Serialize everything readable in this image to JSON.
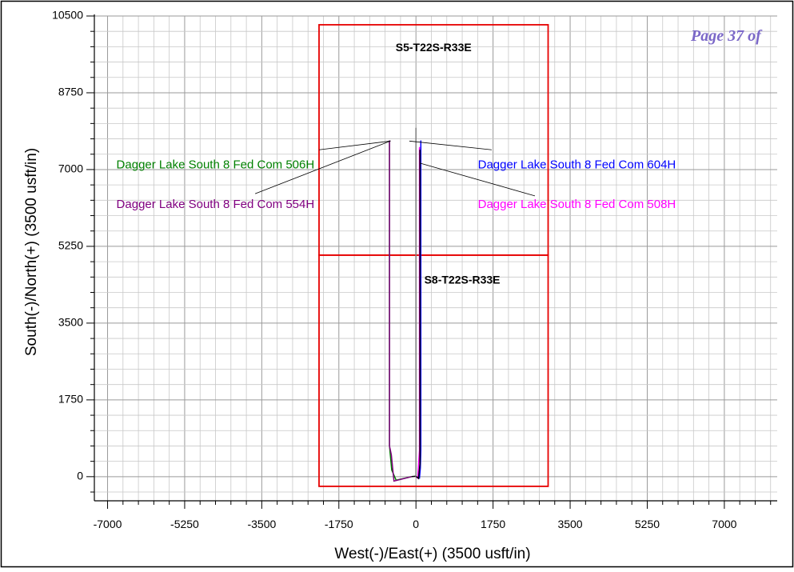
{
  "page_stamp": "Page 37 of",
  "chart_data": {
    "type": "line",
    "title": "",
    "xlabel": "West(-)/East(+) (3500 usft/in)",
    "ylabel": "South(-)/North(+) (3500 usft/in)",
    "xlim": [
      -7300,
      8200
    ],
    "ylim": [
      -550,
      10500
    ],
    "x_ticks": [
      {
        "value": -7000,
        "label": "-7000"
      },
      {
        "value": -5250,
        "label": "-5250"
      },
      {
        "value": -3500,
        "label": "-3500"
      },
      {
        "value": -1750,
        "label": "-1750"
      },
      {
        "value": 0,
        "label": "0"
      },
      {
        "value": 1750,
        "label": "1750"
      },
      {
        "value": 3500,
        "label": "3500"
      },
      {
        "value": 5250,
        "label": "5250"
      },
      {
        "value": 7000,
        "label": "7000"
      }
    ],
    "y_ticks": [
      {
        "value": 0,
        "label": "0"
      },
      {
        "value": 1750,
        "label": "1750"
      },
      {
        "value": 3500,
        "label": "3500"
      },
      {
        "value": 5250,
        "label": "5250"
      },
      {
        "value": 7000,
        "label": "7000"
      },
      {
        "value": 8750,
        "label": "8750"
      },
      {
        "value": 10500,
        "label": "10500"
      }
    ],
    "grid": true,
    "section_outline_color": "#e60000",
    "sections": [
      {
        "label": "S5-T22S-R33E",
        "x0": -2200,
        "x1": 3000,
        "y0": 5050,
        "y1": 10300,
        "label_x": 400,
        "label_y": 9700
      },
      {
        "label": "S8-T22S-R33E",
        "x0": -2200,
        "x1": 3000,
        "y0": -220,
        "y1": 5050,
        "label_x": 1050,
        "label_y": 4400
      }
    ],
    "series": [
      {
        "name": "Dagger Lake South 8 Fed Com 506H",
        "color": "#008000",
        "x": [
          -100,
          -450,
          -550,
          -600,
          -600,
          -580
        ],
        "y": [
          0,
          -80,
          150,
          700,
          7650,
          7650
        ]
      },
      {
        "name": "Dagger Lake South 8 Fed Com 554H",
        "color": "#800080",
        "x": [
          -100,
          -500,
          -560,
          -600,
          -600,
          -580
        ],
        "y": [
          0,
          -100,
          500,
          700,
          7650,
          7650
        ]
      },
      {
        "name": "Dagger Lake South 8 Fed Com 604H",
        "color": "#0000ff",
        "x": [
          0,
          80,
          100,
          110,
          110,
          100
        ],
        "y": [
          0,
          -30,
          200,
          600,
          7650,
          7650
        ]
      },
      {
        "name": "Dagger Lake South 8 Fed Com 508H",
        "color": "#ff00ff",
        "x": [
          0,
          40,
          60,
          80,
          80,
          70
        ],
        "y": [
          0,
          -30,
          300,
          600,
          7500,
          7500
        ]
      },
      {
        "name": "",
        "color": "#000000",
        "x": [
          -100,
          0,
          60,
          90,
          90
        ],
        "y": [
          0,
          10,
          -40,
          300,
          7450
        ]
      },
      {
        "name": "",
        "color": "#808080",
        "x": [
          0,
          0
        ],
        "y": [
          0,
          7950
        ]
      }
    ],
    "annotations": [
      {
        "text": "Dagger Lake South 8 Fed Com 506H",
        "color": "#008000",
        "x": -6800,
        "y": 7100,
        "anchor": "start",
        "leader": [
          [
            -2200,
            7450
          ],
          [
            -580,
            7650
          ]
        ]
      },
      {
        "text": "Dagger Lake South 8 Fed Com 554H",
        "color": "#800080",
        "x": -6800,
        "y": 6200,
        "anchor": "start",
        "leader": [
          [
            -3650,
            6450
          ],
          [
            -580,
            7650
          ]
        ]
      },
      {
        "text": "Dagger Lake South 8 Fed Com 604H",
        "color": "#0000ff",
        "x": 5900,
        "y": 7100,
        "anchor": "end",
        "leader": [
          [
            1720,
            7450
          ],
          [
            -150,
            7650
          ]
        ]
      },
      {
        "text": "Dagger Lake South 8 Fed Com 508H",
        "color": "#ff00ff",
        "x": 5900,
        "y": 6200,
        "anchor": "end",
        "leader": [
          [
            2700,
            6400
          ],
          [
            80,
            7150
          ]
        ]
      }
    ]
  }
}
